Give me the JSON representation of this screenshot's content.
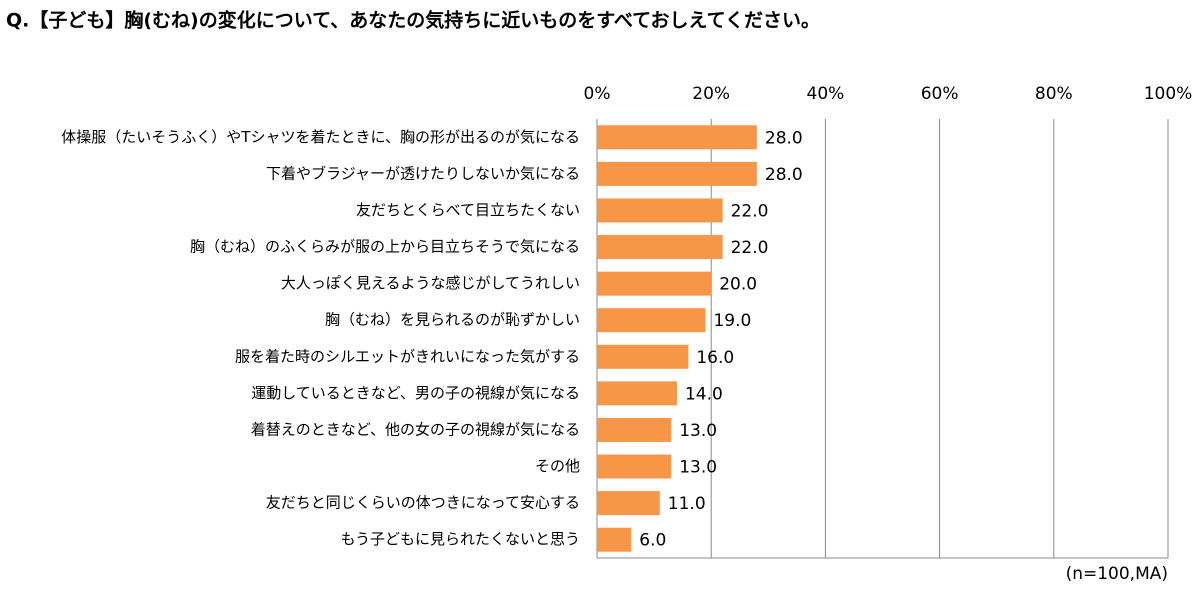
{
  "chart_data": {
    "type": "bar",
    "orientation": "horizontal",
    "title": "Q.【子ども】胸(むね)の変化について、あなたの気持ちに近いものをすべておしえてください。",
    "note": "(n=100,MA)",
    "categories": [
      "体操服（たいそうふく）やTシャツを着たときに、胸の形が出るのが気になる",
      "下着やブラジャーが透けたりしないか気になる",
      "友だちとくらべて目立ちたくない",
      "胸（むね）のふくらみが服の上から目立ちそうで気になる",
      "大人っぽく見えるような感じがしてうれしい",
      "胸（むね）を見られるのが恥ずかしい",
      "服を着た時のシルエットがきれいになった気がする",
      "運動しているときなど、男の子の視線が気になる",
      "着替えのときなど、他の女の子の視線が気になる",
      "その他",
      "友だちと同じくらいの体つきになって安心する",
      "もう子どもに見られたくないと思う"
    ],
    "values": [
      28,
      28,
      22,
      22,
      20,
      19,
      16,
      14,
      13,
      13,
      11,
      6
    ],
    "value_labels": [
      "28.0",
      "28.0",
      "22.0",
      "22.0",
      "20.0",
      "19.0",
      "16.0",
      "14.0",
      "13.0",
      "13.0",
      "11.0",
      "6.0"
    ],
    "color": "#f79646",
    "xlim": [
      0,
      100
    ],
    "xticks": [
      {
        "value": 0,
        "label": "0%"
      },
      {
        "value": 20,
        "label": "20%"
      },
      {
        "value": 40,
        "label": "40%"
      },
      {
        "value": 60,
        "label": "60%"
      },
      {
        "value": 80,
        "label": "80%"
      },
      {
        "value": 100,
        "label": "100%"
      }
    ],
    "grid": true
  }
}
